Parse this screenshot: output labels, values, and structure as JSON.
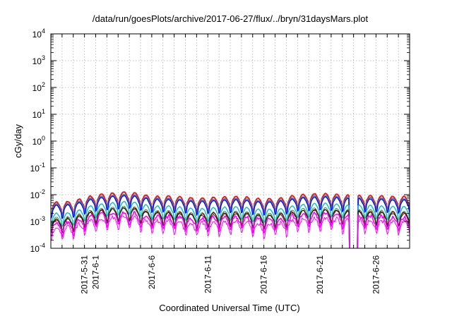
{
  "chart_data": {
    "type": "line",
    "title": "/data/run/goesPlots/archive/2017-06-27/flux/../bryn/31daysMars.plot",
    "xlabel": "Coordinated Universal Time (UTC)",
    "ylabel": "cGy/day",
    "yscale": "log",
    "ylim": [
      0.0001,
      10000
    ],
    "xlim": [
      "2017-05-28T00:00",
      "2017-06-29T00:00"
    ],
    "grid": true,
    "yticks": [
      {
        "base": "10",
        "exp": "-4",
        "value": 0.0001
      },
      {
        "base": "10",
        "exp": "-3",
        "value": 0.001
      },
      {
        "base": "10",
        "exp": "-2",
        "value": 0.01
      },
      {
        "base": "10",
        "exp": "-1",
        "value": 0.1
      },
      {
        "base": "10",
        "exp": "0",
        "value": 1
      },
      {
        "base": "10",
        "exp": "1",
        "value": 10
      },
      {
        "base": "10",
        "exp": "2",
        "value": 100
      },
      {
        "base": "10",
        "exp": "3",
        "value": 1000
      },
      {
        "base": "10",
        "exp": "4",
        "value": 10000
      }
    ],
    "xticks": [
      {
        "date": "2017-05-31",
        "label": "2017-5-31"
      },
      {
        "date": "2017-06-01",
        "label": "2017-6-1"
      },
      {
        "date": "2017-06-06",
        "label": "2017-6-6"
      },
      {
        "date": "2017-06-11",
        "label": "2017-6-11"
      },
      {
        "date": "2017-06-16",
        "label": "2017-6-16"
      },
      {
        "date": "2017-06-21",
        "label": "2017-6-21"
      },
      {
        "date": "2017-06-26",
        "label": "2017-6-26"
      }
    ],
    "gap": {
      "start": "2017-06-23T16:00",
      "end": "2017-06-24T08:00"
    },
    "series": [
      {
        "color": "#e41a1c",
        "width": 2.0,
        "level": [
          0.0055,
          0.0055,
          0.006,
          0.008,
          0.0105,
          0.0115,
          0.0125,
          0.0135,
          0.011,
          0.009,
          0.0095,
          0.0092,
          0.0085,
          0.0075,
          0.0082,
          0.0085,
          0.0088,
          0.0092,
          0.0078,
          0.0072,
          0.0078,
          0.0082,
          0.0105,
          0.0108,
          0.0115,
          0.0112,
          0.0102,
          0.0098,
          0.0098,
          0.0095,
          0.0092,
          0.0088,
          0.0088
        ]
      },
      {
        "color": "#377eb8",
        "width": 2.0,
        "level": [
          0.0046,
          0.0046,
          0.005,
          0.0066,
          0.0086,
          0.0093,
          0.0101,
          0.011,
          0.009,
          0.0075,
          0.0078,
          0.0075,
          0.007,
          0.0061,
          0.0067,
          0.007,
          0.0072,
          0.0075,
          0.0064,
          0.0059,
          0.0064,
          0.0067,
          0.0086,
          0.0088,
          0.0094,
          0.0092,
          0.0084,
          0.008,
          0.008,
          0.0078,
          0.0075,
          0.0072,
          0.0072
        ]
      },
      {
        "color": "#0000ff",
        "width": 1.2,
        "level": [
          0.0042,
          0.0042,
          0.0045,
          0.006,
          0.0078,
          0.0085,
          0.0092,
          0.01,
          0.0082,
          0.0068,
          0.0071,
          0.0068,
          0.0064,
          0.0056,
          0.0061,
          0.0064,
          0.0065,
          0.0068,
          0.0058,
          0.0054,
          0.0058,
          0.0061,
          0.0078,
          0.008,
          0.0086,
          0.0084,
          0.0076,
          0.0073,
          0.0073,
          0.0071,
          0.0068,
          0.0066,
          0.0066
        ]
      },
      {
        "color": "#17becf",
        "width": 1.5,
        "level": [
          0.0021,
          0.0021,
          0.0023,
          0.0033,
          0.0045,
          0.005,
          0.0055,
          0.006,
          0.0048,
          0.0038,
          0.004,
          0.0038,
          0.0035,
          0.003,
          0.0033,
          0.0035,
          0.0036,
          0.0038,
          0.0031,
          0.0029,
          0.0031,
          0.0033,
          0.0045,
          0.0046,
          0.005,
          0.0049,
          0.0044,
          0.0042,
          0.0042,
          0.004,
          0.0038,
          0.0037,
          0.0037
        ]
      },
      {
        "color": "#1a9850",
        "width": 1.0,
        "level": [
          0.0015,
          0.0015,
          0.0016,
          0.0023,
          0.0031,
          0.0034,
          0.0037,
          0.004,
          0.0032,
          0.0026,
          0.0027,
          0.0026,
          0.0024,
          0.0021,
          0.0023,
          0.0024,
          0.0025,
          0.0026,
          0.0022,
          0.002,
          0.0022,
          0.0023,
          0.0031,
          0.0032,
          0.0034,
          0.0033,
          0.003,
          0.0029,
          0.0029,
          0.0028,
          0.0026,
          0.0025,
          0.0025
        ]
      },
      {
        "color": "#8b0000",
        "width": 1.3,
        "level": [
          0.00135,
          0.00135,
          0.0015,
          0.0021,
          0.0028,
          0.0031,
          0.0034,
          0.0037,
          0.0029,
          0.0024,
          0.0025,
          0.0024,
          0.0022,
          0.0019,
          0.0021,
          0.0022,
          0.0023,
          0.0024,
          0.002,
          0.0018,
          0.002,
          0.0021,
          0.0028,
          0.0029,
          0.0031,
          0.003,
          0.0027,
          0.0026,
          0.0026,
          0.0025,
          0.0024,
          0.0023,
          0.0023
        ]
      },
      {
        "color": "#222222",
        "width": 1.0,
        "level": [
          0.00125,
          0.00125,
          0.0014,
          0.0019,
          0.0026,
          0.0029,
          0.0032,
          0.0035,
          0.0027,
          0.0022,
          0.0023,
          0.0022,
          0.002,
          0.0018,
          0.0019,
          0.002,
          0.0021,
          0.0022,
          0.0019,
          0.0017,
          0.0019,
          0.0019,
          0.0026,
          0.0027,
          0.0029,
          0.0028,
          0.0025,
          0.0024,
          0.0024,
          0.0023,
          0.0022,
          0.0021,
          0.0021
        ]
      },
      {
        "color": "#ff00ff",
        "width": 1.6,
        "level": [
          0.00105,
          0.00105,
          0.00115,
          0.0016,
          0.0022,
          0.0024,
          0.0026,
          0.0028,
          0.0022,
          0.0018,
          0.0019,
          0.0018,
          0.0017,
          0.00145,
          0.0016,
          0.0017,
          0.00172,
          0.0018,
          0.00155,
          0.0014,
          0.00155,
          0.0016,
          0.0022,
          0.0023,
          0.0024,
          0.0024,
          0.0021,
          0.002,
          0.002,
          0.0019,
          0.0018,
          0.00175,
          0.00175
        ]
      },
      {
        "color": "#ff00ff",
        "width": 1.0,
        "level": [
          0.00072,
          0.00072,
          0.0008,
          0.0011,
          0.0015,
          0.0016,
          0.0018,
          0.0019,
          0.0015,
          0.0012,
          0.0013,
          0.0012,
          0.0011,
          0.001,
          0.0011,
          0.0011,
          0.0012,
          0.0012,
          0.00105,
          0.00095,
          0.00105,
          0.0011,
          0.0015,
          0.0016,
          0.0016,
          0.0016,
          0.0014,
          0.00135,
          0.00135,
          0.0013,
          0.0012,
          0.0012,
          0.0012
        ]
      }
    ]
  }
}
